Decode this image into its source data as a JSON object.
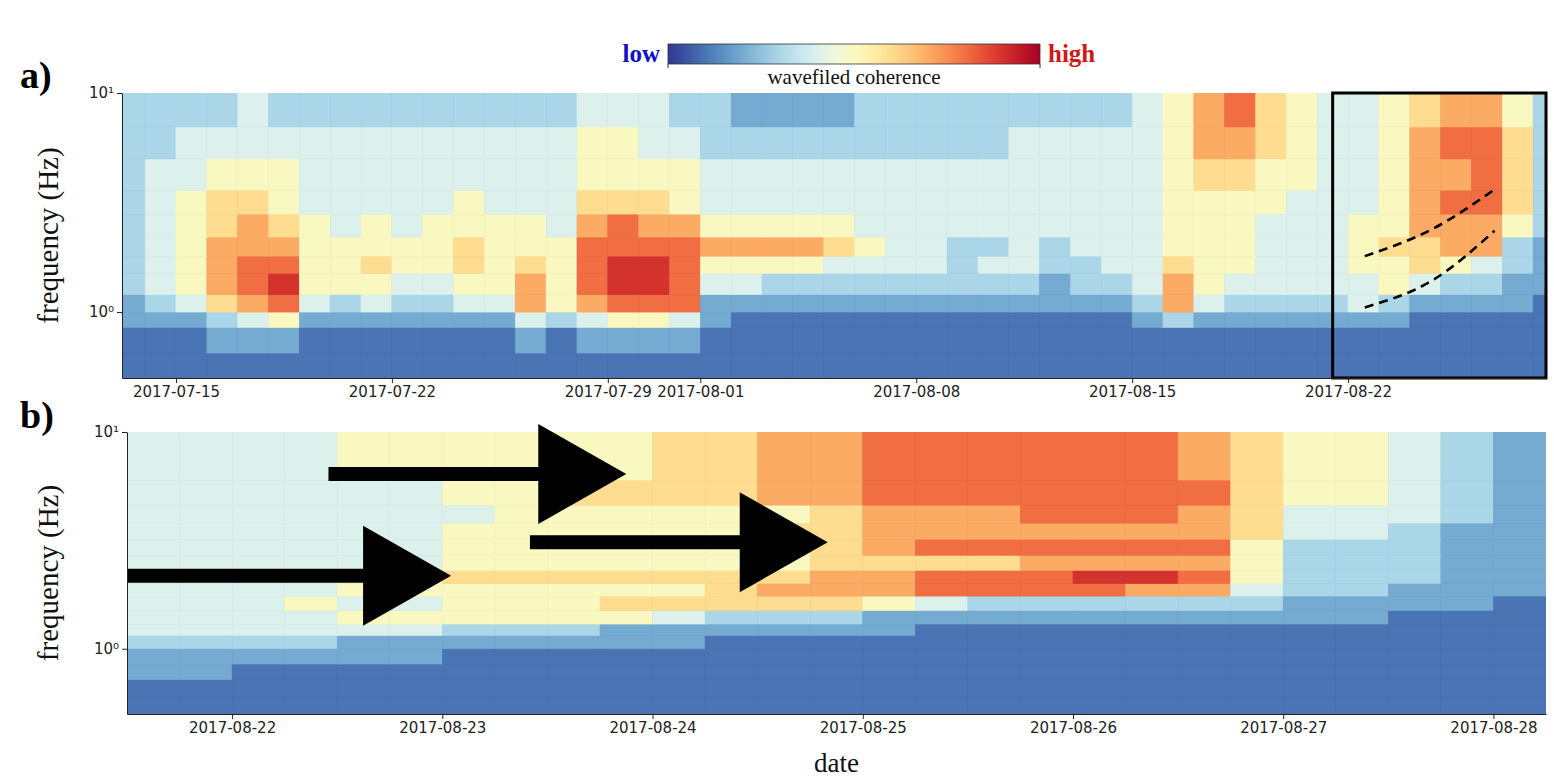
{
  "chart_data": [
    {
      "type": "heatmap",
      "panel": "a)",
      "y_label": "frequency (Hz)",
      "log": "y",
      "xlim": [
        "2017-07-13T06:00",
        "2017-08-28T10:00"
      ],
      "xticks": [
        "2017-07-15",
        "2017-07-22",
        "2017-07-29",
        "2017-08-01",
        "2017-08-08",
        "2017-08-15",
        "2017-08-22"
      ],
      "ylim": [
        0.5,
        10
      ],
      "yticks": [
        {
          "value": 1,
          "label": "10⁰"
        },
        {
          "value": 10,
          "label": "10¹"
        }
      ],
      "colorbar": {
        "label": "wavefiled coherence",
        "range": [
          0,
          10
        ],
        "ticks": [
          {
            "value": 0,
            "label": "low"
          },
          {
            "value": 10,
            "label": "high"
          }
        ]
      },
      "x_edges": [
        "2017-07-13",
        "2017-07-14",
        "2017-07-15",
        "2017-07-16",
        "2017-07-17",
        "2017-07-18",
        "2017-07-19",
        "2017-07-20",
        "2017-07-21",
        "2017-07-22",
        "2017-07-23",
        "2017-07-24",
        "2017-07-25",
        "2017-07-26",
        "2017-07-27",
        "2017-07-28",
        "2017-07-29",
        "2017-07-30",
        "2017-07-31",
        "2017-08-01",
        "2017-08-02",
        "2017-08-03",
        "2017-08-04",
        "2017-08-05",
        "2017-08-06",
        "2017-08-07",
        "2017-08-08",
        "2017-08-09",
        "2017-08-10",
        "2017-08-11",
        "2017-08-12",
        "2017-08-13",
        "2017-08-14",
        "2017-08-15",
        "2017-08-16",
        "2017-08-17",
        "2017-08-18",
        "2017-08-19",
        "2017-08-20",
        "2017-08-21",
        "2017-08-22",
        "2017-08-23",
        "2017-08-24",
        "2017-08-25",
        "2017-08-26",
        "2017-08-27",
        "2017-08-28",
        "2017-08-29"
      ],
      "y_edges": [
        0.5,
        0.65,
        0.85,
        1,
        1.2,
        1.5,
        1.8,
        2.2,
        2.8,
        3.6,
        5,
        7,
        10
      ],
      "z": [
        [
          1,
          1,
          1,
          1,
          1,
          1,
          1,
          1,
          1,
          1,
          1,
          1,
          1,
          1,
          1,
          1,
          1,
          1,
          1,
          1,
          1,
          1,
          1,
          1,
          1,
          1,
          1,
          1,
          1,
          1,
          1,
          1,
          1,
          1,
          1,
          1,
          1,
          1,
          1,
          1,
          1,
          1,
          1,
          1,
          1,
          1,
          1
        ],
        [
          1,
          1,
          1,
          2,
          2,
          2,
          1,
          1,
          1,
          1,
          1,
          1,
          1,
          2,
          1,
          2,
          2,
          2,
          2,
          1,
          1,
          1,
          1,
          1,
          1,
          1,
          1,
          1,
          1,
          1,
          1,
          1,
          1,
          1,
          1,
          1,
          1,
          1,
          1,
          1,
          1,
          1,
          1,
          1,
          1,
          1,
          1
        ],
        [
          2,
          2,
          2,
          3,
          4,
          5,
          2,
          2,
          2,
          2,
          2,
          2,
          2,
          4,
          3,
          4,
          5,
          5,
          4,
          2,
          1,
          1,
          1,
          1,
          1,
          1,
          1,
          1,
          1,
          1,
          1,
          1,
          1,
          2,
          3,
          2,
          2,
          2,
          2,
          2,
          2,
          2,
          1,
          1,
          1,
          1,
          1
        ],
        [
          2,
          3,
          4,
          6,
          7,
          8,
          4,
          3,
          4,
          3,
          3,
          4,
          4,
          7,
          5,
          7,
          8,
          8,
          8,
          2,
          2,
          2,
          2,
          2,
          2,
          2,
          2,
          2,
          2,
          2,
          2,
          2,
          2,
          3,
          7,
          4,
          3,
          3,
          3,
          3,
          4,
          3,
          2,
          2,
          2,
          2,
          1
        ],
        [
          3,
          4,
          5,
          7,
          8,
          9,
          5,
          5,
          5,
          4,
          4,
          5,
          5,
          7,
          5,
          8,
          9,
          9,
          8,
          4,
          4,
          3,
          3,
          3,
          3,
          3,
          3,
          3,
          3,
          3,
          2,
          3,
          3,
          4,
          7,
          5,
          4,
          4,
          4,
          4,
          4,
          5,
          4,
          3,
          3,
          2,
          2
        ],
        [
          3,
          4,
          5,
          7,
          8,
          8,
          5,
          5,
          6,
          5,
          5,
          6,
          5,
          6,
          5,
          8,
          9,
          9,
          8,
          5,
          5,
          5,
          5,
          4,
          4,
          4,
          4,
          3,
          4,
          4,
          3,
          3,
          4,
          4,
          6,
          5,
          5,
          4,
          4,
          4,
          5,
          5,
          6,
          5,
          4,
          3,
          2
        ],
        [
          3,
          4,
          5,
          7,
          7,
          7,
          5,
          5,
          5,
          5,
          5,
          6,
          5,
          5,
          5,
          8,
          8,
          8,
          8,
          7,
          7,
          7,
          7,
          6,
          5,
          4,
          4,
          3,
          3,
          4,
          3,
          4,
          4,
          4,
          5,
          5,
          5,
          4,
          4,
          4,
          5,
          6,
          6,
          7,
          7,
          3,
          2
        ],
        [
          3,
          4,
          5,
          6,
          7,
          6,
          5,
          4,
          5,
          4,
          5,
          5,
          5,
          5,
          4,
          7,
          8,
          7,
          7,
          5,
          5,
          5,
          5,
          5,
          4,
          4,
          4,
          4,
          4,
          4,
          4,
          4,
          4,
          4,
          5,
          5,
          5,
          4,
          4,
          4,
          5,
          5,
          7,
          7,
          7,
          5,
          3
        ],
        [
          3,
          4,
          5,
          6,
          6,
          5,
          4,
          4,
          4,
          4,
          4,
          5,
          4,
          4,
          4,
          6,
          6,
          6,
          5,
          4,
          4,
          4,
          4,
          4,
          4,
          4,
          4,
          4,
          4,
          4,
          4,
          4,
          4,
          4,
          5,
          5,
          5,
          5,
          4,
          4,
          4,
          5,
          7,
          8,
          8,
          6,
          3
        ],
        [
          3,
          4,
          4,
          5,
          5,
          5,
          4,
          4,
          4,
          4,
          4,
          4,
          4,
          4,
          4,
          5,
          5,
          5,
          5,
          4,
          4,
          4,
          4,
          4,
          4,
          4,
          4,
          4,
          4,
          4,
          4,
          4,
          4,
          4,
          5,
          6,
          6,
          5,
          5,
          4,
          4,
          5,
          7,
          7,
          8,
          6,
          3
        ],
        [
          3,
          3,
          4,
          4,
          4,
          4,
          4,
          4,
          4,
          4,
          4,
          4,
          4,
          4,
          4,
          5,
          5,
          4,
          4,
          3,
          3,
          3,
          3,
          3,
          3,
          3,
          3,
          3,
          3,
          4,
          4,
          4,
          4,
          4,
          5,
          7,
          7,
          6,
          5,
          4,
          4,
          5,
          7,
          8,
          8,
          6,
          3
        ],
        [
          3,
          3,
          3,
          3,
          4,
          3,
          3,
          3,
          3,
          3,
          3,
          3,
          3,
          3,
          3,
          4,
          4,
          4,
          3,
          3,
          2,
          2,
          2,
          2,
          3,
          3,
          3,
          3,
          3,
          3,
          3,
          3,
          3,
          4,
          5,
          7,
          8,
          6,
          5,
          4,
          4,
          5,
          6,
          7,
          7,
          5,
          3
        ]
      ],
      "highlight": {
        "x": [
          "2017-08-21T12:00",
          "2017-08-28T10:00"
        ],
        "y": [
          0.5,
          10
        ]
      },
      "dashed_lines": [
        {
          "x": [
            "2017-08-22T13:00",
            "2017-08-24T18:00",
            "2017-08-26T20:00"
          ],
          "y": [
            1.8,
            2.4,
            3.7
          ]
        },
        {
          "x": [
            "2017-08-22T13:00",
            "2017-08-24T18:00",
            "2017-08-26T18:00"
          ],
          "y": [
            1.05,
            1.4,
            2.35
          ]
        }
      ]
    },
    {
      "type": "heatmap",
      "panel": "b)",
      "y_label": "frequency (Hz)",
      "x_label": "date",
      "log": "y",
      "xlim": [
        "2017-08-21T12:00",
        "2017-08-28T06:00"
      ],
      "xticks": [
        "2017-08-22",
        "2017-08-23",
        "2017-08-24",
        "2017-08-25",
        "2017-08-26",
        "2017-08-27",
        "2017-08-28"
      ],
      "ylim": [
        0.5,
        10
      ],
      "yticks": [
        {
          "value": 1,
          "label": "10⁰"
        },
        {
          "value": 10,
          "label": "10¹"
        }
      ],
      "x_edges": [
        "2017-08-21T12:00",
        "2017-08-21T18:00",
        "2017-08-22T00:00",
        "2017-08-22T06:00",
        "2017-08-22T12:00",
        "2017-08-22T18:00",
        "2017-08-23T00:00",
        "2017-08-23T06:00",
        "2017-08-23T12:00",
        "2017-08-23T18:00",
        "2017-08-24T00:00",
        "2017-08-24T06:00",
        "2017-08-24T12:00",
        "2017-08-24T18:00",
        "2017-08-25T00:00",
        "2017-08-25T06:00",
        "2017-08-25T12:00",
        "2017-08-25T18:00",
        "2017-08-26T00:00",
        "2017-08-26T06:00",
        "2017-08-26T12:00",
        "2017-08-26T18:00",
        "2017-08-27T00:00",
        "2017-08-27T06:00",
        "2017-08-27T12:00",
        "2017-08-27T18:00",
        "2017-08-28T00:00",
        "2017-08-28T06:00"
      ],
      "y_edges": [
        0.5,
        0.6,
        0.72,
        0.85,
        1,
        1.15,
        1.3,
        1.5,
        1.75,
        2,
        2.3,
        2.7,
        3.2,
        3.8,
        4.6,
        6,
        10
      ],
      "z": [
        [
          1,
          1,
          1,
          1,
          1,
          1,
          1,
          1,
          1,
          1,
          1,
          1,
          1,
          1,
          1,
          1,
          1,
          1,
          1,
          1,
          1,
          1,
          1,
          1,
          1,
          1,
          1
        ],
        [
          1,
          1,
          1,
          1,
          1,
          1,
          1,
          1,
          1,
          1,
          1,
          1,
          1,
          1,
          1,
          1,
          1,
          1,
          1,
          1,
          1,
          1,
          1,
          1,
          1,
          1,
          1
        ],
        [
          2,
          2,
          1,
          1,
          1,
          1,
          1,
          1,
          1,
          1,
          1,
          1,
          1,
          1,
          1,
          1,
          1,
          1,
          1,
          1,
          1,
          1,
          1,
          1,
          1,
          1,
          1
        ],
        [
          2,
          2,
          2,
          2,
          2,
          2,
          1,
          1,
          1,
          1,
          1,
          1,
          1,
          1,
          1,
          1,
          1,
          1,
          1,
          1,
          1,
          1,
          1,
          1,
          1,
          1,
          1
        ],
        [
          3,
          3,
          3,
          3,
          2,
          2,
          2,
          2,
          2,
          2,
          2,
          1,
          1,
          1,
          1,
          1,
          1,
          1,
          1,
          1,
          1,
          1,
          1,
          1,
          1,
          1,
          1
        ],
        [
          4,
          4,
          4,
          4,
          4,
          4,
          3,
          3,
          3,
          2,
          2,
          2,
          2,
          2,
          2,
          1,
          1,
          1,
          1,
          1,
          1,
          1,
          1,
          1,
          1,
          1,
          1
        ],
        [
          4,
          4,
          4,
          4,
          5,
          5,
          5,
          5,
          5,
          5,
          4,
          3,
          3,
          3,
          2,
          2,
          2,
          2,
          2,
          2,
          2,
          2,
          2,
          2,
          1,
          1,
          1
        ],
        [
          4,
          4,
          4,
          5,
          4,
          4,
          5,
          5,
          5,
          6,
          6,
          6,
          6,
          6,
          5,
          4,
          3,
          3,
          3,
          3,
          3,
          3,
          2,
          2,
          2,
          2,
          1
        ],
        [
          4,
          4,
          4,
          4,
          5,
          5,
          5,
          5,
          5,
          5,
          5,
          6,
          7,
          7,
          7,
          8,
          8,
          8,
          8,
          7,
          7,
          4,
          3,
          3,
          2,
          2,
          2
        ],
        [
          4,
          4,
          4,
          4,
          5,
          5,
          6,
          6,
          6,
          6,
          6,
          6,
          6,
          7,
          7,
          8,
          8,
          8,
          9,
          9,
          8,
          5,
          3,
          3,
          3,
          2,
          2
        ],
        [
          4,
          4,
          4,
          4,
          4,
          4,
          5,
          5,
          5,
          5,
          5,
          5,
          5,
          6,
          6,
          6,
          6,
          7,
          7,
          7,
          7,
          5,
          3,
          3,
          3,
          2,
          2
        ],
        [
          4,
          4,
          4,
          4,
          4,
          4,
          5,
          5,
          5,
          5,
          5,
          5,
          5,
          6,
          7,
          8,
          8,
          8,
          8,
          8,
          8,
          5,
          3,
          3,
          3,
          2,
          2
        ],
        [
          4,
          4,
          4,
          4,
          4,
          4,
          5,
          5,
          5,
          5,
          5,
          5,
          6,
          6,
          7,
          7,
          7,
          7,
          7,
          7,
          7,
          6,
          4,
          4,
          3,
          2,
          2
        ],
        [
          4,
          4,
          4,
          4,
          4,
          4,
          4,
          5,
          5,
          5,
          5,
          5,
          5,
          6,
          7,
          7,
          7,
          8,
          8,
          8,
          7,
          6,
          4,
          4,
          4,
          3,
          2
        ],
        [
          4,
          4,
          4,
          4,
          4,
          4,
          5,
          5,
          6,
          6,
          6,
          6,
          7,
          7,
          8,
          8,
          8,
          8,
          8,
          8,
          8,
          6,
          5,
          5,
          4,
          3,
          2
        ],
        [
          4,
          4,
          4,
          4,
          5,
          5,
          5,
          5,
          5,
          5,
          6,
          6,
          7,
          7,
          8,
          8,
          8,
          8,
          8,
          8,
          7,
          6,
          5,
          5,
          4,
          3,
          2
        ]
      ],
      "arrows": [
        {
          "x": [
            "2017-08-21T12:00",
            "2017-08-23T01:00"
          ],
          "y": 2.17
        },
        {
          "x": [
            "2017-08-22T11:00",
            "2017-08-23T21:00"
          ],
          "y": 6.4
        },
        {
          "x": [
            "2017-08-23T10:00",
            "2017-08-24T20:00"
          ],
          "y": 3.1
        }
      ]
    }
  ]
}
